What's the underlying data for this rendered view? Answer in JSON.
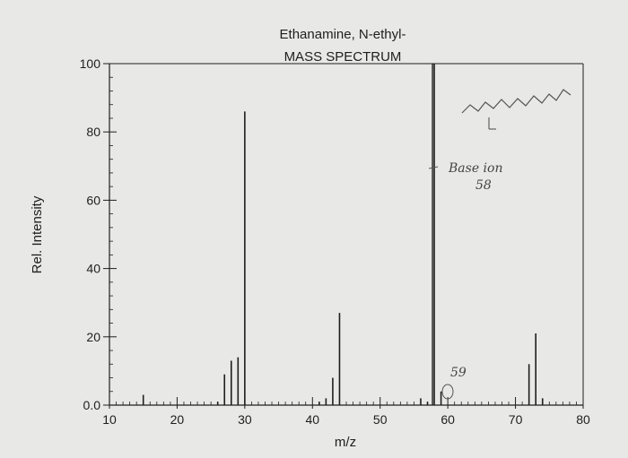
{
  "chart_data": {
    "type": "bar",
    "title": "Ethanamine, N-ethyl-",
    "subtitle": "MASS SPECTRUM",
    "xlabel": "m/z",
    "ylabel": "Rel. Intensity",
    "xlim": [
      10,
      80
    ],
    "ylim": [
      0,
      100
    ],
    "x_ticks": [
      "10",
      "20",
      "30",
      "40",
      "50",
      "60",
      "70",
      "80"
    ],
    "y_ticks": [
      "0.0",
      "20",
      "40",
      "60",
      "80",
      "100"
    ],
    "grid": false,
    "series": [
      {
        "x": [
          15,
          26,
          27,
          28,
          29,
          30,
          41,
          42,
          43,
          44,
          56,
          57,
          58,
          59,
          72,
          73,
          74
        ],
        "values": [
          3,
          1,
          9,
          13,
          14,
          86,
          1,
          2,
          8,
          27,
          2,
          1,
          100,
          4,
          12,
          21,
          2
        ]
      }
    ],
    "annotations": {
      "base_ion_label": "Base ion",
      "base_ion_value": "58",
      "peak_59_label": "59"
    },
    "colors": {
      "bars": "#1e1e1e",
      "background": "#e8e8e6",
      "annotation": "#555555"
    }
  }
}
